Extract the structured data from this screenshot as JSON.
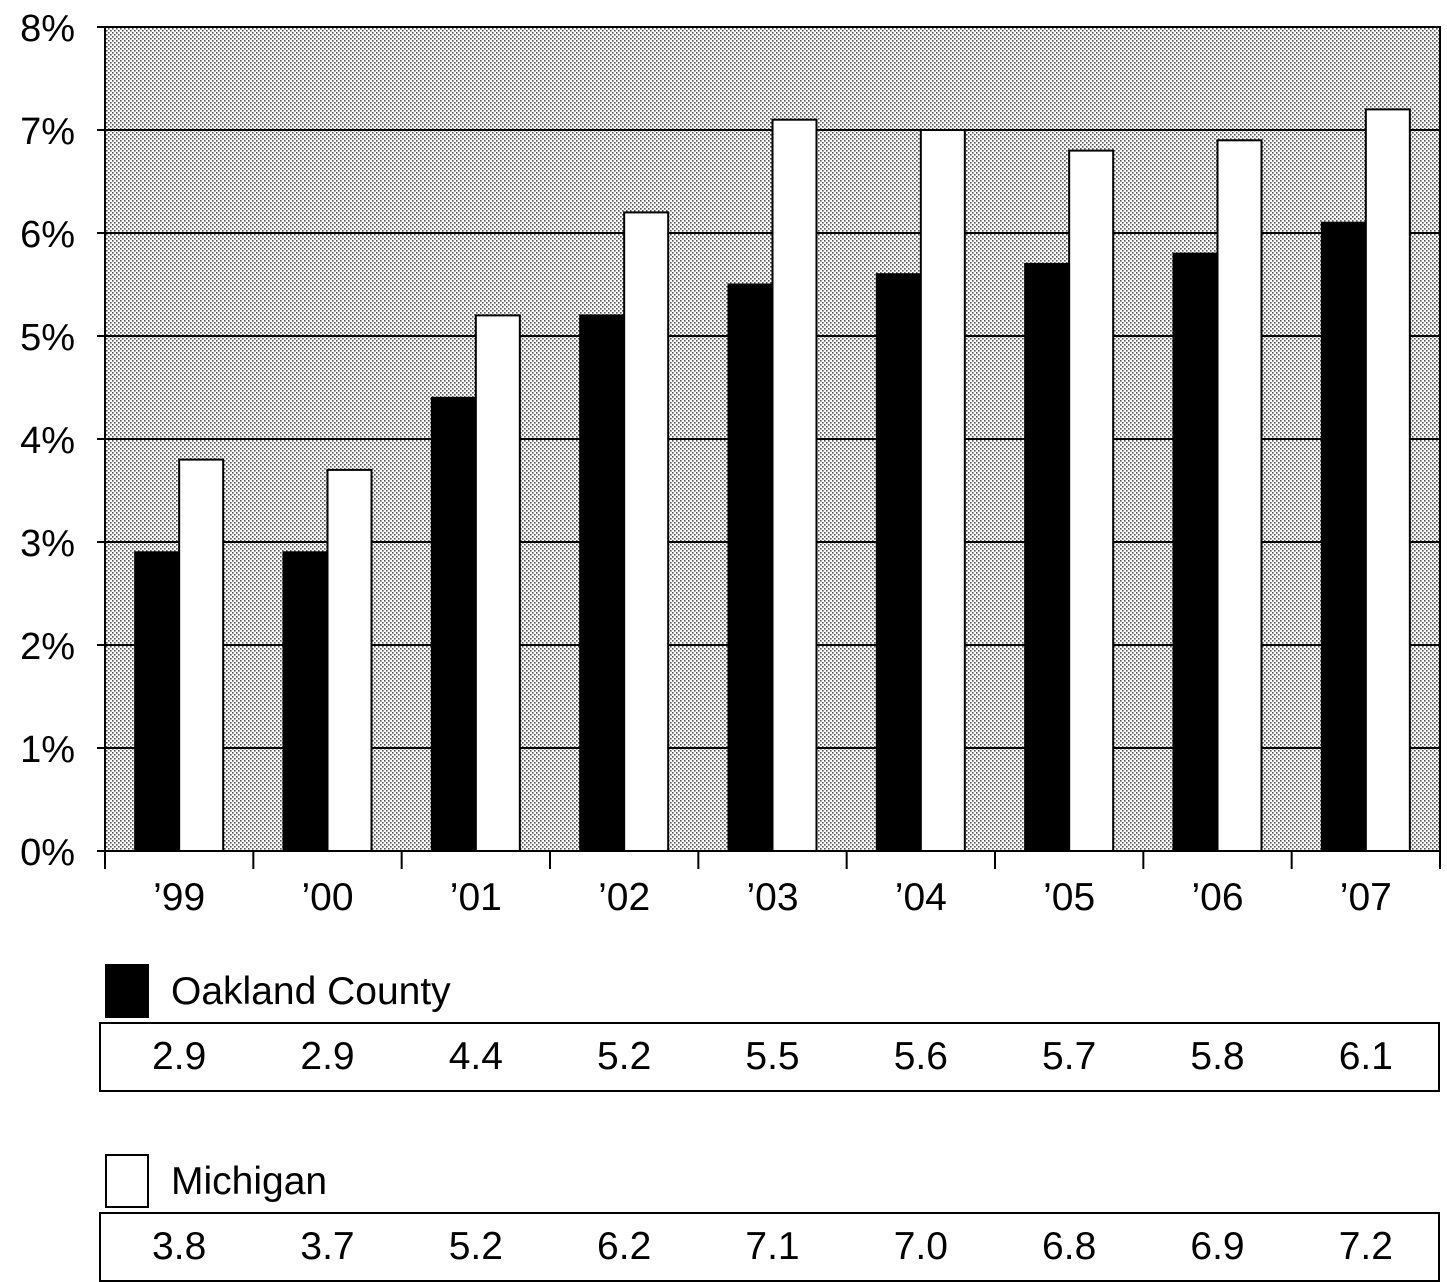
{
  "chart_data": {
    "type": "bar",
    "title": "",
    "xlabel": "",
    "ylabel": "",
    "categories": [
      "’99",
      "’00",
      "’01",
      "’02",
      "’03",
      "’04",
      "’05",
      "’06",
      "’07"
    ],
    "yticks": [
      "0%",
      "1%",
      "2%",
      "3%",
      "4%",
      "5%",
      "6%",
      "7%",
      "8%"
    ],
    "ylim": [
      0,
      8
    ],
    "grid": true,
    "series": [
      {
        "name": "Oakland County",
        "color": "#000000",
        "values": [
          2.9,
          2.9,
          4.4,
          5.2,
          5.5,
          5.6,
          5.7,
          5.8,
          6.1
        ],
        "value_labels": [
          "2.9",
          "2.9",
          "4.4",
          "5.2",
          "5.5",
          "5.6",
          "5.7",
          "5.8",
          "6.1"
        ]
      },
      {
        "name": "Michigan",
        "color": "#ffffff",
        "values": [
          3.8,
          3.7,
          5.2,
          6.2,
          7.1,
          7.0,
          6.8,
          6.9,
          7.2
        ],
        "value_labels": [
          "3.8",
          "3.7",
          "5.2",
          "6.2",
          "7.1",
          "7.0",
          "6.8",
          "6.9",
          "7.2"
        ]
      }
    ]
  }
}
